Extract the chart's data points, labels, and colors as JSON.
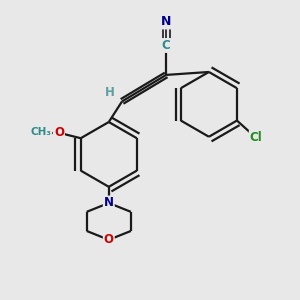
{
  "bg_color": "#e8e8e8",
  "atom_colors": {
    "C": "#2e8b8b",
    "N": "#00008b",
    "O": "#cc0000",
    "Cl": "#228b22",
    "H": "#5f9ea0"
  },
  "bond_color": "#1a1a1a",
  "bond_width": 1.6,
  "dbl_sep": 0.09
}
